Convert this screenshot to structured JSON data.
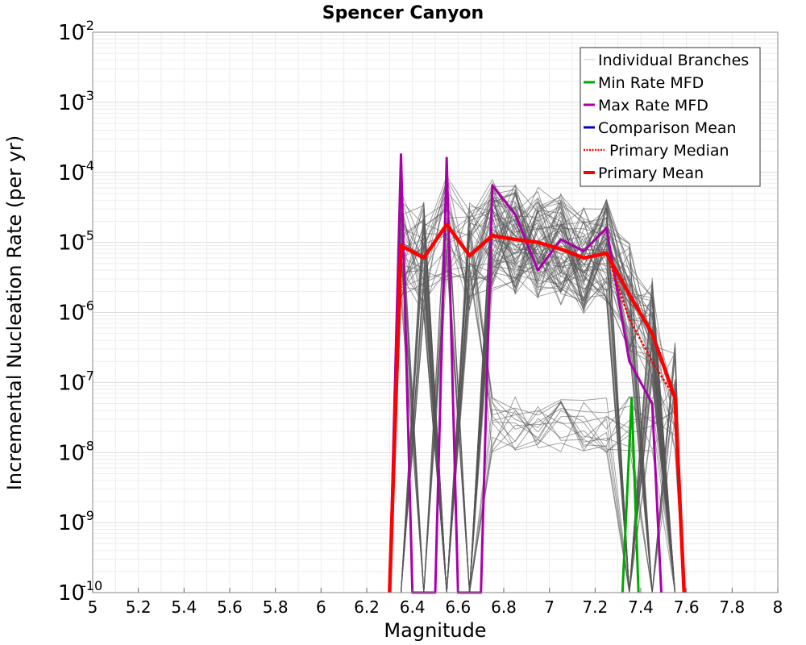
{
  "chart_data": {
    "type": "line",
    "title": "Spencer Canyon",
    "xlabel": "Magnitude",
    "ylabel": "Incremental Nucleation Rate (per yr)",
    "xlim": [
      5,
      8
    ],
    "ylim": [
      1e-10,
      0.01
    ],
    "yscale": "log",
    "grid": true,
    "legend_position": "top-right",
    "x_ticks": [
      "5",
      "5.2",
      "5.4",
      "5.6",
      "5.8",
      "6",
      "6.2",
      "6.4",
      "6.6",
      "6.8",
      "7",
      "7.2",
      "7.4",
      "7.6",
      "7.8",
      "8"
    ],
    "y_ticks": [
      {
        "base": "10",
        "exp": "-2"
      },
      {
        "base": "10",
        "exp": "-3"
      },
      {
        "base": "10",
        "exp": "-4"
      },
      {
        "base": "10",
        "exp": "-5"
      },
      {
        "base": "10",
        "exp": "-6"
      },
      {
        "base": "10",
        "exp": "-7"
      },
      {
        "base": "10",
        "exp": "-8"
      },
      {
        "base": "10",
        "exp": "-9"
      },
      {
        "base": "10",
        "exp": "-10"
      }
    ],
    "legend": [
      {
        "name": "Individual Branches",
        "color": "#c8c8c8",
        "style": "thin"
      },
      {
        "name": "Min Rate MFD",
        "color": "#00aa00",
        "style": "solid"
      },
      {
        "name": "Max Rate MFD",
        "color": "#aa00aa",
        "style": "solid"
      },
      {
        "name": "Comparison Mean",
        "color": "#0000cc",
        "style": "solid"
      },
      {
        "name": "Primary Median",
        "color": "#ff0000",
        "style": "dotted"
      },
      {
        "name": "Primary Mean",
        "color": "#ff0000",
        "style": "thick"
      }
    ],
    "series": [
      {
        "name": "Primary Mean",
        "color": "#ff0000",
        "x": [
          6.3,
          6.35,
          6.45,
          6.55,
          6.65,
          6.75,
          6.85,
          6.95,
          7.05,
          7.15,
          7.25,
          7.35,
          7.45,
          7.55,
          7.59
        ],
        "y": [
          1e-10,
          9e-06,
          6e-06,
          1.8e-05,
          6.5e-06,
          1.25e-05,
          1.1e-05,
          1e-05,
          8e-06,
          6e-06,
          7e-06,
          1.8e-06,
          5e-07,
          6e-08,
          1e-10
        ]
      },
      {
        "name": "Primary Median",
        "color": "#ff0000",
        "x": [
          6.3,
          6.35,
          6.45,
          6.55,
          6.65,
          6.75,
          6.85,
          6.95,
          7.05,
          7.15,
          7.25,
          7.35,
          7.45,
          7.55,
          7.59
        ],
        "y": [
          1e-10,
          9e-06,
          6e-06,
          1.8e-05,
          6.5e-06,
          1.2e-05,
          1.1e-05,
          1e-05,
          8e-06,
          6e-06,
          7e-06,
          8e-07,
          2e-07,
          6e-08,
          1e-10
        ]
      },
      {
        "name": "Max Rate MFD",
        "color": "#aa00aa",
        "x": [
          6.3,
          6.35,
          6.4,
          6.5,
          6.55,
          6.6,
          6.7,
          6.75,
          6.85,
          6.95,
          7.05,
          7.15,
          7.25,
          7.35,
          7.45,
          7.49
        ],
        "y": [
          1e-10,
          0.00018,
          1e-10,
          1e-10,
          0.00016,
          1e-10,
          1e-10,
          6.5e-05,
          2.5e-05,
          4e-06,
          1.1e-05,
          7.5e-06,
          1.6e-05,
          2e-07,
          5e-08,
          1e-10
        ]
      },
      {
        "name": "Min Rate MFD",
        "color": "#00aa00",
        "x": [
          7.32,
          7.36,
          7.39
        ],
        "y": [
          1e-10,
          6e-08,
          1e-10
        ]
      }
    ]
  }
}
